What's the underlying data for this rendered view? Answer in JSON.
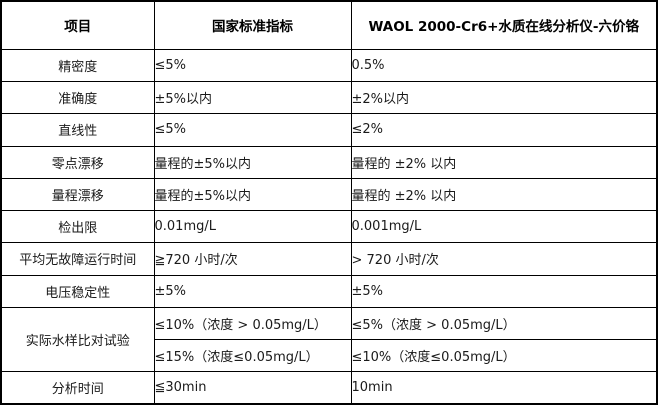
{
  "table": {
    "headers": {
      "item": "项目",
      "standard": "国家标准指标",
      "product": "WAOL 2000-Cr6+水质在线分析仪-六价铬"
    },
    "rows": [
      {
        "item": "精密度",
        "standard": "≤5%",
        "product": "0.5%"
      },
      {
        "item": "准确度",
        "standard": "±5%以内",
        "product": "±2%以内"
      },
      {
        "item": "直线性",
        "standard": "≤5%",
        "product": "≤2%"
      },
      {
        "item": "零点漂移",
        "standard": "量程的±5%以内",
        "product": "量程的 ±2% 以内"
      },
      {
        "item": "量程漂移",
        "standard": "量程的±5%以内",
        "product": "量程的 ±2% 以内"
      },
      {
        "item": "检出限",
        "standard": "0.01mg/L",
        "product": "0.001mg/L"
      },
      {
        "item": "平均无故障运行时间",
        "standard": "≧720 小时/次",
        "product": "> 720 小时/次"
      },
      {
        "item": "电压稳定性",
        "standard": "±5%",
        "product": "±5%"
      },
      {
        "item": "实际水样比对试验",
        "standard": "≤10%（浓度 > 0.05mg/L）",
        "product": "≤5%（浓度 > 0.05mg/L）"
      },
      {
        "item": "",
        "standard": "≤15%（浓度≤0.05mg/L）",
        "product": "≤10%（浓度≤0.05mg/L）"
      },
      {
        "item": "分析时间",
        "standard": "≦30min",
        "product": "10min"
      }
    ],
    "colors": {
      "border": "#000000",
      "text": "#1a1a1a",
      "background": "#ffffff"
    }
  }
}
